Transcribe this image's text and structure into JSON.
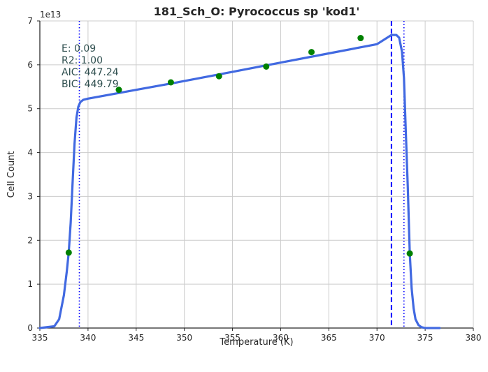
{
  "chart_data": {
    "type": "line",
    "title": "181_Sch_O: Pyrococcus sp 'kod1'",
    "xlabel": "Temperature (K)",
    "ylabel": "Cell Count",
    "y_scale_label": "1e13",
    "xlim": [
      335,
      380
    ],
    "ylim": [
      0,
      7
    ],
    "x_ticks": [
      335,
      340,
      345,
      350,
      355,
      360,
      365,
      370,
      375,
      380
    ],
    "y_ticks": [
      0,
      1,
      2,
      3,
      4,
      5,
      6,
      7
    ],
    "grid": true,
    "series": [
      {
        "type": "scatter",
        "color": "#008000",
        "x": [
          338.0,
          343.2,
          348.6,
          353.6,
          358.5,
          363.2,
          368.3,
          373.4
        ],
        "y": [
          1.72,
          5.43,
          5.6,
          5.74,
          5.96,
          6.29,
          6.61,
          1.7
        ]
      },
      {
        "type": "line",
        "color": "#4169e1",
        "x": [
          335,
          336.5,
          337.0,
          337.5,
          337.8,
          338.0,
          338.2,
          338.4,
          338.6,
          338.8,
          339.0,
          339.2,
          339.5,
          340.0,
          345.0,
          350.0,
          355.0,
          360.0,
          365.0,
          370.0,
          371.5,
          372.0,
          372.3,
          372.6,
          372.8,
          373.0,
          373.2,
          373.4,
          373.6,
          373.8,
          374.0,
          374.3,
          374.6,
          375.0,
          376.0,
          376.5
        ],
        "y": [
          0.0,
          0.04,
          0.2,
          0.75,
          1.3,
          1.72,
          2.4,
          3.3,
          4.2,
          4.8,
          5.05,
          5.15,
          5.2,
          5.23,
          5.43,
          5.63,
          5.84,
          6.05,
          6.26,
          6.47,
          6.68,
          6.68,
          6.62,
          6.3,
          5.7,
          4.4,
          3.2,
          1.7,
          0.9,
          0.45,
          0.2,
          0.07,
          0.02,
          0.0,
          0.0,
          0.0
        ]
      }
    ],
    "vlines": [
      {
        "x": 339.1,
        "style": "dotted",
        "color": "#0000ff"
      },
      {
        "x": 372.8,
        "style": "dotted",
        "color": "#0000ff"
      },
      {
        "x": 371.5,
        "style": "dashed",
        "color": "#0000ff"
      }
    ],
    "annotations": [
      "E:  0.09",
      "R2:  1.00",
      "AIC: 447.24",
      "BIC: 449.79"
    ]
  }
}
